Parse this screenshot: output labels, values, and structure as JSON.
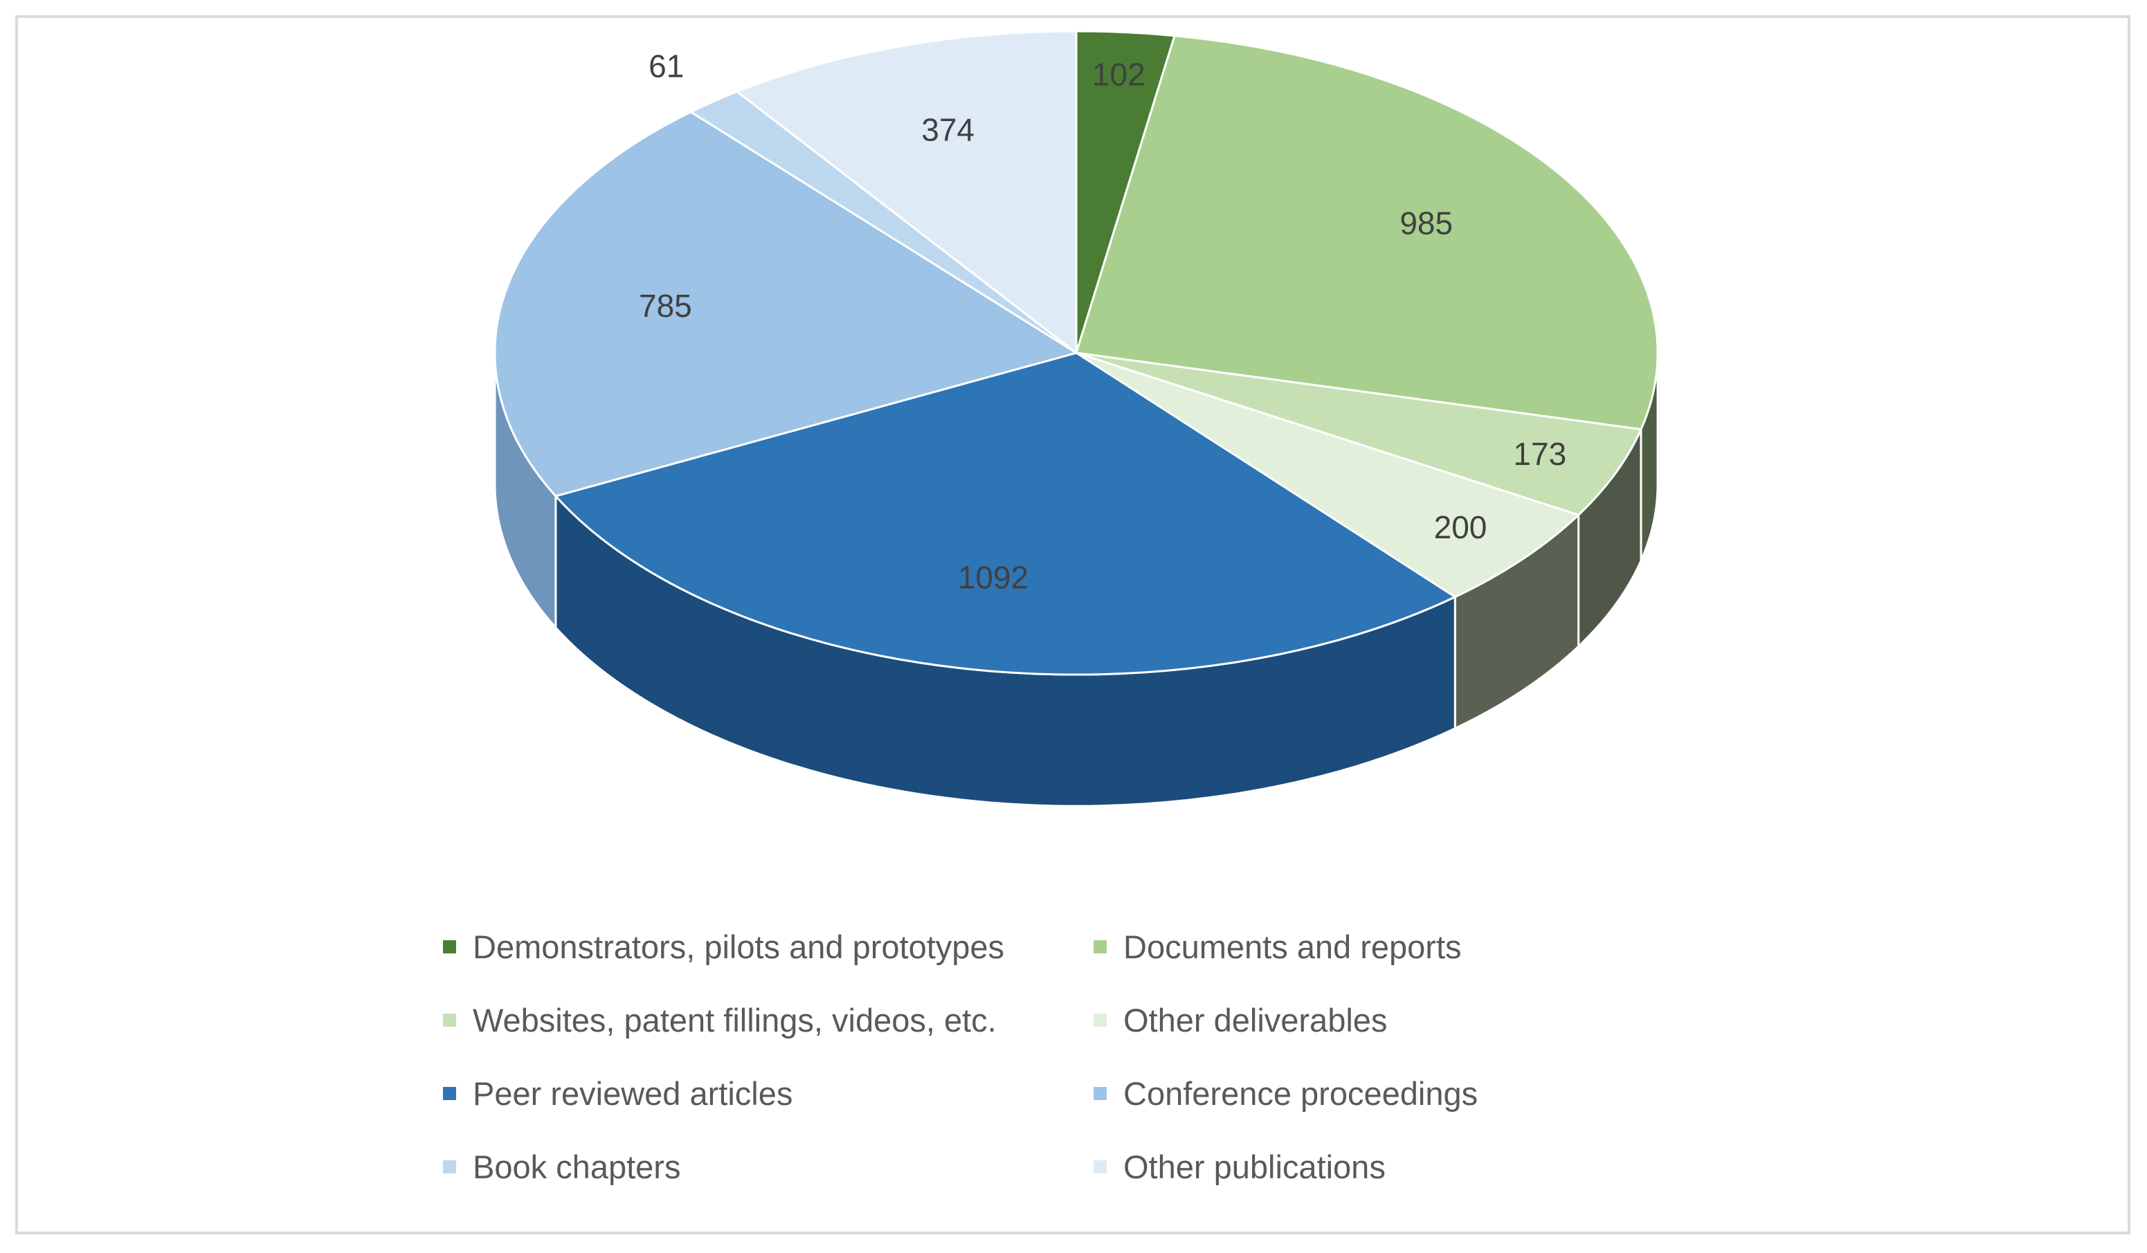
{
  "chart_data": {
    "type": "pie",
    "style": "3d",
    "categories": [
      "Demonstrators, pilots and prototypes",
      "Documents and reports",
      "Websites, patent fillings, videos, etc.",
      "Other deliverables",
      "Peer reviewed articles",
      "Conference proceedings",
      "Book chapters",
      "Other publications"
    ],
    "values": [
      102,
      985,
      173,
      200,
      1092,
      785,
      61,
      374
    ],
    "data_labels": [
      "102",
      "985",
      "173",
      "200",
      "1092",
      "785",
      "61",
      "374"
    ],
    "colors": [
      "#4a7d33",
      "#a8cf8e",
      "#c6e0b4",
      "#e2efda",
      "#2e75b6",
      "#9dc3e6",
      "#bdd7ee",
      "#deebf7"
    ],
    "side_colors": [
      "#384a2c",
      "#4d5e44",
      "#4f5848",
      "#5a6152",
      "#1b4c7c",
      "#6f95bd",
      "#8aa8c8",
      "#a6bfd8"
    ],
    "legend_position": "bottom",
    "title": ""
  }
}
